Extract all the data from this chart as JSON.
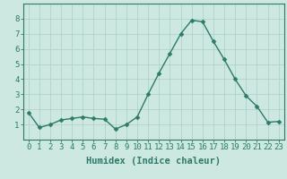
{
  "x": [
    0,
    1,
    2,
    3,
    4,
    5,
    6,
    7,
    8,
    9,
    10,
    11,
    12,
    13,
    14,
    15,
    16,
    17,
    18,
    19,
    20,
    21,
    22,
    23
  ],
  "y": [
    1.8,
    0.8,
    1.0,
    1.3,
    1.4,
    1.5,
    1.4,
    1.35,
    0.7,
    1.0,
    1.5,
    3.0,
    4.4,
    5.7,
    7.0,
    7.9,
    7.8,
    6.5,
    5.3,
    4.0,
    2.9,
    2.2,
    1.15,
    1.2
  ],
  "line_color": "#2d7a68",
  "marker": "D",
  "marker_size": 2.5,
  "bg_color": "#cce8e0",
  "grid_color": "#aacfc7",
  "xlabel": "Humidex (Indice chaleur)",
  "ylim": [
    0,
    9
  ],
  "xlim": [
    -0.5,
    23.5
  ],
  "yticks": [
    1,
    2,
    3,
    4,
    5,
    6,
    7,
    8
  ],
  "xticks": [
    0,
    1,
    2,
    3,
    4,
    5,
    6,
    7,
    8,
    9,
    10,
    11,
    12,
    13,
    14,
    15,
    16,
    17,
    18,
    19,
    20,
    21,
    22,
    23
  ],
  "xlabel_fontsize": 7.5,
  "tick_fontsize": 6.5,
  "line_width": 1.0,
  "axis_color": "#2d7a68",
  "spine_color": "#2d7a68"
}
